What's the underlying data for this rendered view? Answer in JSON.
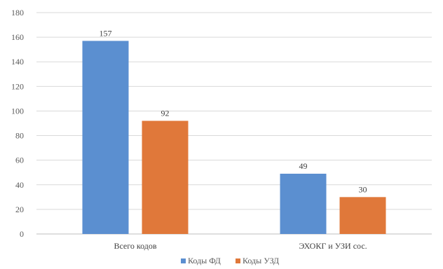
{
  "chart_data": {
    "type": "bar",
    "categories": [
      "Всего кодов",
      "ЭХОКГ и УЗИ сос."
    ],
    "series": [
      {
        "name": "Коды ФД",
        "values": [
          157,
          49
        ],
        "color": "#5B8FD0"
      },
      {
        "name": "Коды УЗД",
        "values": [
          92,
          30
        ],
        "color": "#E0783A"
      }
    ],
    "ylim": [
      0,
      180
    ],
    "yticks": [
      0,
      20,
      40,
      60,
      80,
      100,
      120,
      140,
      160,
      180
    ],
    "grid": true,
    "legend": "bottom",
    "data_labels": true
  }
}
